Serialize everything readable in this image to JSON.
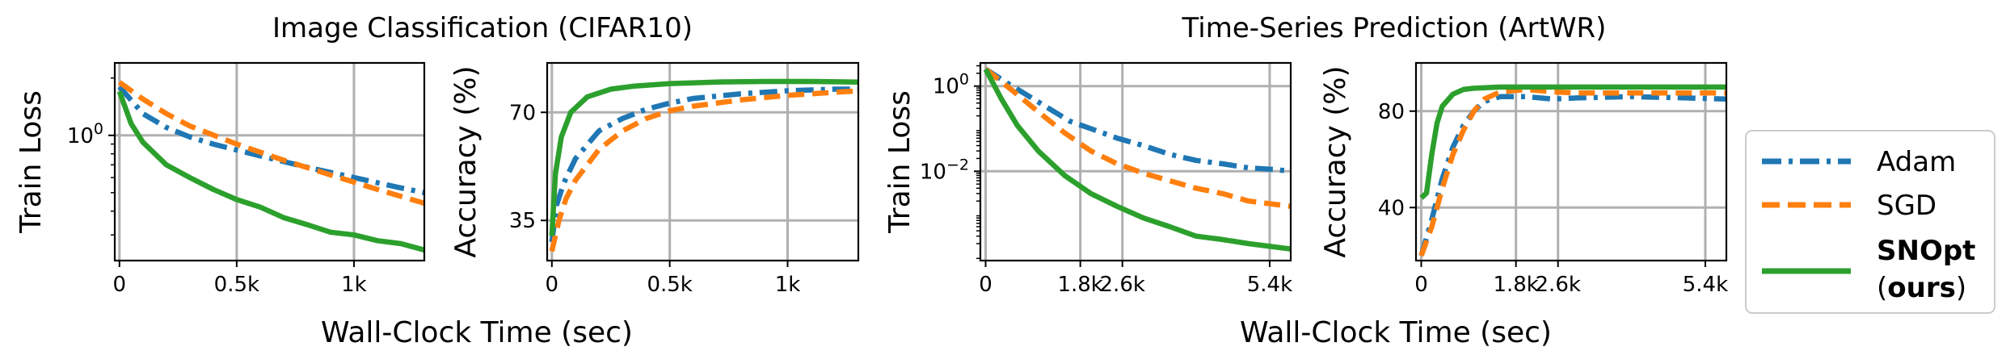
{
  "figure": {
    "group_titles": [
      "Image Classification (CIFAR10)",
      "Time-Series Prediction (ArtWR)"
    ],
    "xlabel": "Wall-Clock Time (sec)"
  },
  "legend": {
    "entries": [
      {
        "key": "adam",
        "label": "Adam"
      },
      {
        "key": "sgd",
        "label": "SGD"
      },
      {
        "key": "snopt",
        "label": "SNOpt",
        "sublabel_open": "(",
        "sublabel_bold": "ours",
        "sublabel_close": ")"
      }
    ],
    "position": "right"
  },
  "colors": {
    "adam": "#1f77b4",
    "sgd": "#ff7f0e",
    "snopt": "#2ca02c",
    "grid": "#b0b0b0"
  },
  "chart_data": [
    {
      "type": "line",
      "group": "Image Classification (CIFAR10)",
      "ylabel": "Train Loss",
      "yscale": "log",
      "xlim": [
        -20,
        1300
      ],
      "ylim": [
        0.22,
        2.4
      ],
      "xticks": [
        0,
        500,
        1000
      ],
      "xtick_labels": [
        "0",
        "0.5k",
        "1k"
      ],
      "yticks": [
        1.0
      ],
      "ytick_labels": [
        "10^0"
      ],
      "grid": true,
      "series": [
        {
          "key": "adam",
          "name": "Adam",
          "style": "dashdot",
          "x": [
            0,
            100,
            200,
            300,
            400,
            600,
            800,
            1000,
            1200,
            1300
          ],
          "y": [
            1.8,
            1.3,
            1.1,
            0.98,
            0.9,
            0.78,
            0.68,
            0.6,
            0.53,
            0.5
          ]
        },
        {
          "key": "sgd",
          "name": "SGD",
          "style": "dashed",
          "x": [
            0,
            100,
            200,
            300,
            500,
            700,
            900,
            1100,
            1300
          ],
          "y": [
            1.9,
            1.55,
            1.3,
            1.12,
            0.9,
            0.74,
            0.62,
            0.52,
            0.44
          ]
        },
        {
          "key": "snopt",
          "name": "SNOpt",
          "style": "solid",
          "x": [
            0,
            50,
            100,
            200,
            300,
            400,
            500,
            600,
            700,
            800,
            900,
            1000,
            1100,
            1200,
            1300
          ],
          "y": [
            1.7,
            1.15,
            0.92,
            0.7,
            0.6,
            0.52,
            0.46,
            0.42,
            0.37,
            0.34,
            0.31,
            0.3,
            0.28,
            0.27,
            0.25
          ]
        }
      ]
    },
    {
      "type": "line",
      "group": "Image Classification (CIFAR10)",
      "ylabel": "Accuracy (%)",
      "yscale": "linear",
      "xlim": [
        -20,
        1300
      ],
      "ylim": [
        22,
        86
      ],
      "xticks": [
        0,
        500,
        1000
      ],
      "xtick_labels": [
        "0",
        "0.5k",
        "1k"
      ],
      "yticks": [
        35,
        70
      ],
      "ytick_labels": [
        "35",
        "70"
      ],
      "grid": true,
      "series": [
        {
          "key": "adam",
          "name": "Adam",
          "style": "dashdot",
          "x": [
            0,
            20,
            50,
            100,
            200,
            300,
            400,
            500,
            600,
            800,
            1000,
            1200,
            1300
          ],
          "y": [
            28,
            40,
            47,
            55,
            64,
            68,
            71,
            73,
            74.5,
            76,
            77,
            77.5,
            77.5
          ]
        },
        {
          "key": "sgd",
          "name": "SGD",
          "style": "dashed",
          "x": [
            0,
            30,
            60,
            100,
            200,
            300,
            400,
            500,
            600,
            800,
            1000,
            1200,
            1300
          ],
          "y": [
            25,
            35,
            42,
            48,
            58,
            64,
            68,
            70.5,
            72,
            74,
            75.5,
            76.5,
            77
          ]
        },
        {
          "key": "snopt",
          "name": "SNOpt",
          "style": "solid",
          "x": [
            0,
            15,
            40,
            80,
            150,
            250,
            350,
            500,
            700,
            900,
            1100,
            1300
          ],
          "y": [
            30,
            50,
            62,
            70,
            75,
            77.5,
            78.5,
            79.3,
            79.8,
            80,
            80,
            79.8
          ]
        }
      ]
    },
    {
      "type": "line",
      "group": "Time-Series Prediction (ArtWR)",
      "ylabel": "Train Loss",
      "yscale": "log",
      "xlim": [
        -100,
        5800
      ],
      "ylim": [
        8e-05,
        3.5
      ],
      "xticks": [
        0,
        1800,
        2600,
        5400
      ],
      "xtick_labels": [
        "0",
        "1.8k",
        "2.6k",
        "5.4k"
      ],
      "yticks": [
        1.0,
        0.01
      ],
      "ytick_labels": [
        "10^0",
        "10^-2"
      ],
      "grid": true,
      "series": [
        {
          "key": "adam",
          "name": "Adam",
          "style": "dashdot",
          "x": [
            0,
            400,
            800,
            1200,
            1600,
            2000,
            2500,
            3000,
            3500,
            4000,
            4500,
            5000,
            5500,
            5800
          ],
          "y": [
            2.5,
            1.2,
            0.6,
            0.3,
            0.15,
            0.1,
            0.06,
            0.04,
            0.025,
            0.018,
            0.015,
            0.012,
            0.011,
            0.01
          ]
        },
        {
          "key": "sgd",
          "name": "SGD",
          "style": "dashed",
          "x": [
            0,
            500,
            1000,
            1500,
            2000,
            2500,
            3000,
            3500,
            4000,
            4500,
            5000,
            5800
          ],
          "y": [
            2.5,
            0.8,
            0.25,
            0.08,
            0.03,
            0.015,
            0.009,
            0.006,
            0.004,
            0.003,
            0.002,
            0.0015
          ]
        },
        {
          "key": "snopt",
          "name": "SNOpt",
          "style": "solid",
          "x": [
            0,
            300,
            600,
            1000,
            1500,
            2000,
            2500,
            3000,
            3500,
            4000,
            4500,
            5000,
            5800
          ],
          "y": [
            2.5,
            0.5,
            0.12,
            0.03,
            0.008,
            0.003,
            0.0015,
            0.0008,
            0.0005,
            0.0003,
            0.00025,
            0.0002,
            0.00015
          ]
        }
      ]
    },
    {
      "type": "line",
      "group": "Time-Series Prediction (ArtWR)",
      "ylabel": "Accuracy (%)",
      "yscale": "linear",
      "xlim": [
        -100,
        5800
      ],
      "ylim": [
        18,
        100
      ],
      "xticks": [
        0,
        1800,
        2600,
        5400
      ],
      "xtick_labels": [
        "0",
        "1.8k",
        "2.6k",
        "5.4k"
      ],
      "yticks": [
        40,
        80
      ],
      "ytick_labels": [
        "40",
        "80"
      ],
      "grid": true,
      "series": [
        {
          "key": "adam",
          "name": "Adam",
          "style": "dashdot",
          "x": [
            0,
            200,
            400,
            600,
            800,
            1000,
            1200,
            1500,
            2000,
            2500,
            3000,
            4000,
            5000,
            5800
          ],
          "y": [
            20,
            35,
            52,
            65,
            74,
            80,
            84,
            86,
            86,
            85,
            85.5,
            86,
            85.5,
            85
          ]
        },
        {
          "key": "sgd",
          "name": "SGD",
          "style": "dashed",
          "x": [
            0,
            200,
            400,
            600,
            800,
            1000,
            1200,
            1500,
            2000,
            2500,
            3000,
            4000,
            5000,
            5800
          ],
          "y": [
            20,
            32,
            48,
            62,
            72,
            80,
            85,
            88,
            89,
            88,
            87.5,
            87.5,
            87.5,
            87.5
          ]
        },
        {
          "key": "snopt",
          "name": "SNOpt",
          "style": "solid",
          "x": [
            0,
            100,
            200,
            300,
            400,
            600,
            800,
            1000,
            1500,
            2000,
            3000,
            4000,
            5000,
            5800
          ],
          "y": [
            44,
            46,
            62,
            75,
            82,
            87,
            89,
            89.5,
            90,
            90,
            90,
            90,
            90,
            90
          ]
        }
      ]
    }
  ]
}
